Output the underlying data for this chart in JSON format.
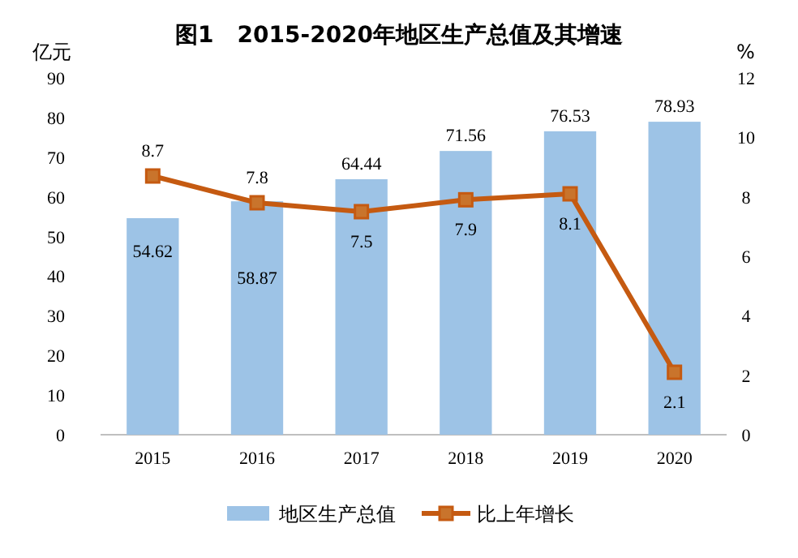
{
  "chart_data": {
    "type": "bar",
    "title": "图1   2015-2020年地区生产总值及其增速",
    "ylabel": "亿元",
    "y2label": "%",
    "categories": [
      "2015",
      "2016",
      "2017",
      "2018",
      "2019",
      "2020"
    ],
    "series": [
      {
        "name": "地区生产总值",
        "color": "#9dc3e6",
        "values": [
          54.62,
          58.87,
          64.44,
          71.56,
          76.53,
          78.93
        ]
      },
      {
        "name": "比上年增长",
        "type": "line",
        "axis": "y2",
        "color": "#c55a11",
        "marker": "square",
        "values": [
          8.7,
          7.8,
          7.5,
          7.9,
          8.1,
          2.1
        ]
      }
    ],
    "ylim": [
      0,
      90
    ],
    "yticks": [
      0,
      10,
      20,
      30,
      40,
      50,
      60,
      70,
      80,
      90
    ],
    "y2lim": [
      0,
      12
    ],
    "y2ticks": [
      0,
      2,
      4,
      6,
      8,
      10,
      12
    ],
    "data_labels": true,
    "legend": "bottom",
    "grid": false
  }
}
